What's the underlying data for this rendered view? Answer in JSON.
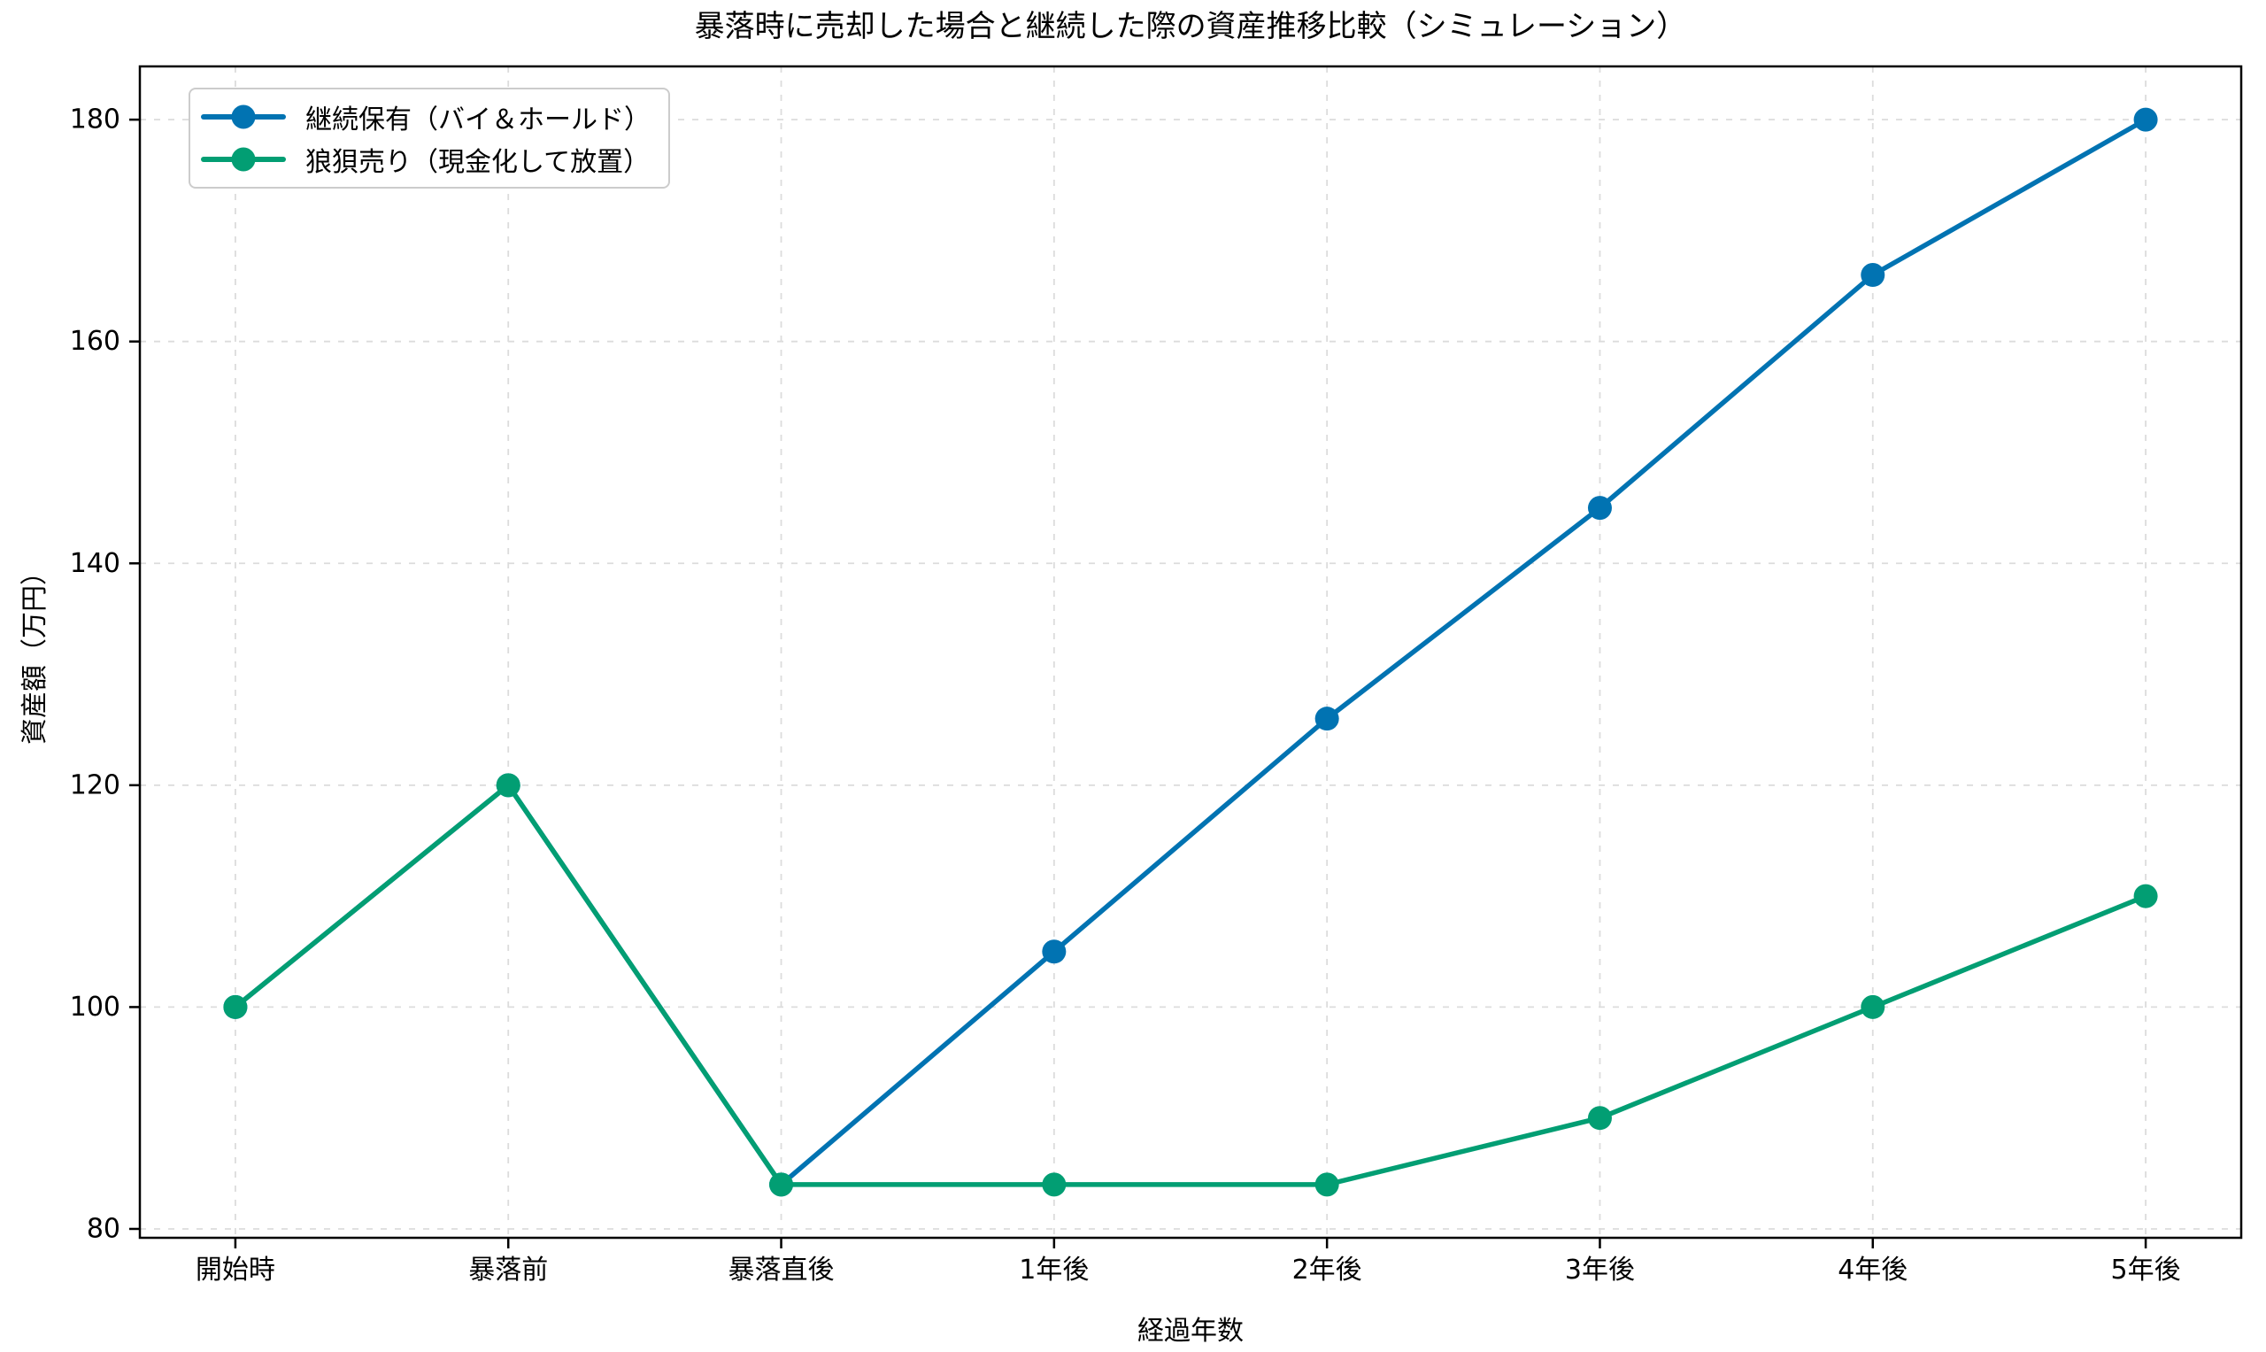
{
  "chart_data": {
    "type": "line",
    "title": "暴落時に売却した場合と継続した際の資産推移比較（シミュレーション）",
    "xlabel": "経過年数",
    "ylabel": "資産額（万円）",
    "categories": [
      "開始時",
      "暴落前",
      "暴落直後",
      "1年後",
      "2年後",
      "3年後",
      "4年後",
      "5年後"
    ],
    "series": [
      {
        "name": "継続保有（バイ＆ホールド）",
        "color": "#0173b2",
        "values": [
          100,
          120,
          84,
          105,
          126,
          145,
          166,
          180
        ]
      },
      {
        "name": "狼狽売り（現金化して放置）",
        "color": "#029e73",
        "values": [
          100,
          120,
          84,
          84,
          84,
          90,
          100,
          110
        ]
      }
    ],
    "y_ticks": [
      80,
      100,
      120,
      140,
      160,
      180
    ],
    "ylim": [
      79.2,
      184.8
    ],
    "grid": true,
    "grid_style": "dashed",
    "legend_position": "upper-left",
    "colors": {
      "grid": "#dcdcdc",
      "axis": "#000000",
      "text": "#000000",
      "background": "#ffffff"
    }
  }
}
